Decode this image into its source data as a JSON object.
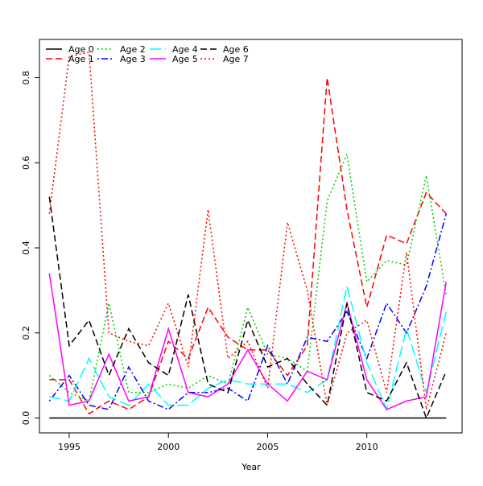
{
  "chart_data": {
    "type": "line",
    "title": "",
    "xlabel": "Year",
    "ylabel": "",
    "xlim": [
      1993.5,
      2014.8
    ],
    "ylim": [
      -0.035,
      0.89
    ],
    "x_ticks": [
      1995,
      2000,
      2005,
      2010
    ],
    "x_tick_labels": [
      "1995",
      "2000",
      "2005",
      "2010"
    ],
    "y_ticks": [
      0.0,
      0.2,
      0.4,
      0.6,
      0.8
    ],
    "y_tick_labels": [
      "0.0",
      "0.2",
      "0.4",
      "0.6",
      "0.8"
    ],
    "grid": false,
    "legend_position": "top-left",
    "x": [
      1994,
      1995,
      1996,
      1997,
      1998,
      1999,
      2000,
      2001,
      2002,
      2003,
      2004,
      2005,
      2006,
      2007,
      2008,
      2009,
      2010,
      2011,
      2012,
      2013,
      2014
    ],
    "series": [
      {
        "name": "Age 0",
        "color": "#000000",
        "style": "solid",
        "values": [
          0,
          0,
          0,
          0,
          0,
          0,
          0,
          0,
          0,
          0,
          0,
          0,
          0,
          0,
          0,
          0,
          0,
          0,
          0,
          0,
          0
        ]
      },
      {
        "name": "Age 1",
        "color": "#ff0000",
        "style": "dashed",
        "values": [
          0.09,
          0.09,
          0.01,
          0.04,
          0.02,
          0.05,
          0.18,
          0.14,
          0.26,
          0.19,
          0.16,
          0.16,
          0.1,
          0.17,
          0.8,
          0.49,
          0.26,
          0.43,
          0.41,
          0.53,
          0.48
        ]
      },
      {
        "name": "Age 2",
        "color": "#00cd00",
        "style": "dotted",
        "values": [
          0.1,
          0.06,
          0.04,
          0.27,
          0.06,
          0.06,
          0.08,
          0.07,
          0.1,
          0.08,
          0.26,
          0.15,
          0.14,
          0.11,
          0.51,
          0.62,
          0.32,
          0.37,
          0.36,
          0.57,
          0.29
        ]
      },
      {
        "name": "Age 3",
        "color": "#0000ff",
        "style": "dotdash",
        "values": [
          0.04,
          0.1,
          0.03,
          0.02,
          0.12,
          0.04,
          0.02,
          0.06,
          0.06,
          0.07,
          0.04,
          0.17,
          0.08,
          0.19,
          0.18,
          0.25,
          0.14,
          0.27,
          0.2,
          0.31,
          0.48
        ]
      },
      {
        "name": "Age 4",
        "color": "#00ffff",
        "style": "longdash",
        "values": [
          0.05,
          0.04,
          0.14,
          0.05,
          0.03,
          0.08,
          0.03,
          0.03,
          0.07,
          0.09,
          0.08,
          0.08,
          0.08,
          0.06,
          0.09,
          0.31,
          0.13,
          0.02,
          0.21,
          0.06,
          0.25
        ]
      },
      {
        "name": "Age 5",
        "color": "#ff00ff",
        "style": "solid",
        "values": [
          0.34,
          0.03,
          0.04,
          0.15,
          0.04,
          0.05,
          0.21,
          0.06,
          0.05,
          0.08,
          0.16,
          0.08,
          0.04,
          0.11,
          0.09,
          0.27,
          0.09,
          0.02,
          0.04,
          0.05,
          0.32
        ]
      },
      {
        "name": "Age 6",
        "color": "#000000",
        "style": "dashed",
        "values": [
          0.52,
          0.17,
          0.23,
          0.1,
          0.21,
          0.13,
          0.1,
          0.29,
          0.08,
          0.06,
          0.23,
          0.12,
          0.14,
          0.08,
          0.03,
          0.27,
          0.06,
          0.04,
          0.13,
          0.0,
          0.11
        ]
      },
      {
        "name": "Age 7",
        "color": "#ff0000",
        "style": "dotted",
        "values": [
          0.48,
          0.85,
          0.86,
          0.2,
          0.18,
          0.17,
          0.27,
          0.12,
          0.49,
          0.14,
          0.18,
          0.07,
          0.46,
          0.3,
          0.03,
          0.2,
          0.23,
          0.06,
          0.39,
          0.02,
          0.2
        ]
      }
    ]
  }
}
